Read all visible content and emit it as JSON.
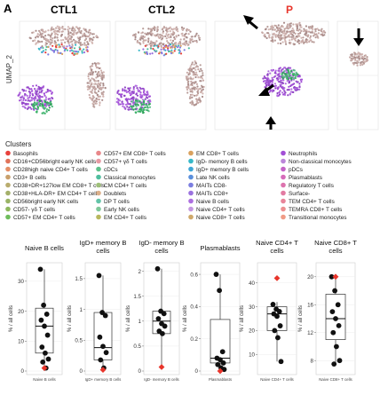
{
  "panel_label": "A",
  "umap": {
    "ylabel": "UMAP_2",
    "panels": [
      {
        "title": "CTL1",
        "color": "#000000"
      },
      {
        "title": "CTL2",
        "color": "#000000"
      },
      {
        "title": "P",
        "color": "#e8352b"
      }
    ]
  },
  "legend": {
    "title": "Clusters",
    "columns": [
      [
        {
          "label": "Basophils",
          "color": "#e8413c"
        },
        {
          "label": "CD16+CD56bright early NK cells",
          "color": "#e0735a"
        },
        {
          "label": "CD28high naive CD4+ T cells",
          "color": "#e48f67"
        },
        {
          "label": "CD3+ B cells",
          "color": "#c9a06b"
        },
        {
          "label": "CD38+DR+127low EM CD8+ T cells",
          "color": "#b9ac6e"
        },
        {
          "label": "CD38+HLA-DR+ EM CD4+ T cells",
          "color": "#a4b06a"
        },
        {
          "label": "CD56bright early NK cells",
          "color": "#9ab466"
        },
        {
          "label": "CD57- γδ T cells",
          "color": "#8fb85e"
        },
        {
          "label": "CD57+ EM CD4+ T cells",
          "color": "#6fbd5c"
        }
      ],
      [
        {
          "label": "CD57+ EM CD8+ T cells",
          "color": "#e8878a"
        },
        {
          "label": "CD57+ γδ T cells",
          "color": "#e69aa3"
        },
        {
          "label": "cDCs",
          "color": "#5fc08a"
        },
        {
          "label": "Classical monocytes",
          "color": "#4fbe9e"
        },
        {
          "label": "CM CD4+ T cells",
          "color": "#9fc07a"
        },
        {
          "label": "Doublets",
          "color": "#dcb08a"
        },
        {
          "label": "DP T cells",
          "color": "#63c4a8"
        },
        {
          "label": "Early NK cells",
          "color": "#7fc89a"
        },
        {
          "label": "EM CD4+ T cells",
          "color": "#b8b85e"
        }
      ],
      [
        {
          "label": "EM CD8+ T cells",
          "color": "#d9a15e"
        },
        {
          "label": "IgD- memory B cells",
          "color": "#36b8c8"
        },
        {
          "label": "IgD+ memory B cells",
          "color": "#3fa6d6"
        },
        {
          "label": "Late NK cells",
          "color": "#5a8fdc"
        },
        {
          "label": "MAITs CD8-",
          "color": "#7b7ee0"
        },
        {
          "label": "MAITs CD8+",
          "color": "#9b72df"
        },
        {
          "label": "Naive B cells",
          "color": "#ad6ee0"
        },
        {
          "label": "Naive CD4+ T cells",
          "color": "#c497e0"
        },
        {
          "label": "Naive CD8+ T cells",
          "color": "#cfa86a"
        }
      ],
      [
        {
          "label": "Neutrophils",
          "color": "#a24fd6"
        },
        {
          "label": "Non-classical monocytes",
          "color": "#bb86d9"
        },
        {
          "label": "pDCs",
          "color": "#c463c6"
        },
        {
          "label": "Plasmablasts",
          "color": "#d66bba"
        },
        {
          "label": "Regulatory T cells",
          "color": "#dd73ae"
        },
        {
          "label": "Surface-",
          "color": "#e27ba2"
        },
        {
          "label": "TEM CD4+ T cells",
          "color": "#e8859a"
        },
        {
          "label": "TEMRA CD8+ T cells",
          "color": "#ec8f90"
        },
        {
          "label": "Transitional monocytes",
          "color": "#f09b86"
        }
      ]
    ]
  },
  "chart_data": [
    {
      "type": "box",
      "title": "Naive B cells",
      "xlabel": "Naive B cells",
      "ylabel": "% / all cells",
      "yticks": [
        0,
        10,
        20,
        30
      ],
      "ylim": [
        0,
        35
      ],
      "box": {
        "q1": 6,
        "median": 15,
        "q3": 21,
        "whisker_low": 0,
        "whisker_high": 34
      },
      "points": [
        34,
        22,
        19,
        17,
        15,
        12,
        8,
        6,
        4,
        3,
        1
      ],
      "patient": 1
    },
    {
      "type": "box",
      "title": "IgD+ memory B cells",
      "xlabel": "IgD+ memory B cells",
      "ylabel": "% / all cells",
      "yticks": [
        0,
        0.5,
        1,
        1.5
      ],
      "ylim": [
        0,
        1.7
      ],
      "box": {
        "q1": 0.18,
        "median": 0.38,
        "q3": 0.95,
        "whisker_low": 0.02,
        "whisker_high": 1.55
      },
      "points": [
        1.55,
        0.95,
        0.9,
        0.55,
        0.4,
        0.3,
        0.18,
        0.05
      ],
      "patient": 0.02
    },
    {
      "type": "box",
      "title": "IgD- memory B cells",
      "xlabel": "IgD- memory B cells",
      "ylabel": "% / all cells",
      "yticks": [
        0,
        0.5,
        1,
        1.5,
        2
      ],
      "ylim": [
        0,
        2.1
      ],
      "box": {
        "q1": 0.75,
        "median": 1.0,
        "q3": 1.2,
        "whisker_low": 0.08,
        "whisker_high": 2.05
      },
      "points": [
        2.05,
        1.2,
        1.15,
        1.05,
        0.95,
        0.9,
        0.8,
        0.75
      ],
      "patient": 0.08
    },
    {
      "type": "box",
      "title": "Plasmablasts",
      "xlabel": "Plasmablasts",
      "ylabel": "% / all cells",
      "yticks": [
        0,
        0.2,
        0.4,
        0.6
      ],
      "ylim": [
        0,
        0.65
      ],
      "box": {
        "q1": 0.05,
        "median": 0.08,
        "q3": 0.32,
        "whisker_low": 0.0,
        "whisker_high": 0.6
      },
      "points": [
        0.6,
        0.5,
        0.12,
        0.08,
        0.07,
        0.05,
        0.04,
        0.02,
        0.01
      ],
      "patient": 0.0
    },
    {
      "type": "box",
      "title": "Naive CD4+ T cells",
      "xlabel": "Naive CD4+ T cells",
      "ylabel": "% / all cells",
      "yticks": [
        10,
        20,
        30,
        40
      ],
      "ylim": [
        3,
        47
      ],
      "box": {
        "q1": 20,
        "median": 27,
        "q3": 30,
        "whisker_low": 7,
        "whisker_high": 32
      },
      "points": [
        31,
        29,
        28,
        27,
        26,
        22,
        20,
        17,
        7
      ],
      "patient": 42
    },
    {
      "type": "box",
      "title": "Naive CD8+ T cells",
      "xlabel": "Naive CD8+ T cells",
      "ylabel": "% / all cells",
      "yticks": [
        8,
        12,
        16,
        20
      ],
      "ylim": [
        6.5,
        21.5
      ],
      "box": {
        "q1": 11,
        "median": 14,
        "q3": 17.5,
        "whisker_low": 7.5,
        "whisker_high": 20
      },
      "points": [
        20,
        18,
        16,
        15,
        14,
        13,
        12,
        10,
        8,
        7.5
      ],
      "patient": 20
    }
  ]
}
